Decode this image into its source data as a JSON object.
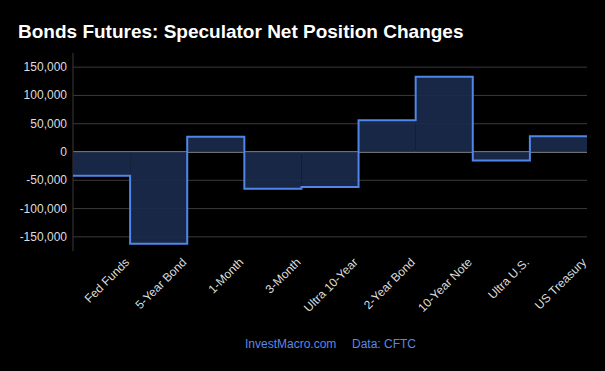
{
  "chart_data": {
    "type": "area",
    "title": "Bonds Futures: Speculator Net Position Changes",
    "categories": [
      "Fed Funds",
      "5-Year Bond",
      "1-Month",
      "3-Month",
      "Ultra 10-Year",
      "2-Year Bond",
      "10-Year Note",
      "Ultra U.S.",
      "US Treasury"
    ],
    "values": [
      -42000,
      -162000,
      27000,
      -65000,
      -62000,
      56000,
      133000,
      -15000,
      28000
    ],
    "color": "#4f86e8",
    "line_style": "step",
    "ylim": [
      -175000,
      175000
    ],
    "yticks": [
      {
        "value": -150000,
        "label": "-150,000"
      },
      {
        "value": -100000,
        "label": "-100,000"
      },
      {
        "value": -50000,
        "label": "-50,000"
      },
      0,
      {
        "value": 50000,
        "label": "50,000"
      },
      {
        "value": 100000,
        "label": "100,000"
      },
      {
        "value": 150000,
        "label": "150,000"
      }
    ],
    "grid": true,
    "annotations": [
      "InvestMacro.com",
      "Data: CFTC"
    ]
  }
}
